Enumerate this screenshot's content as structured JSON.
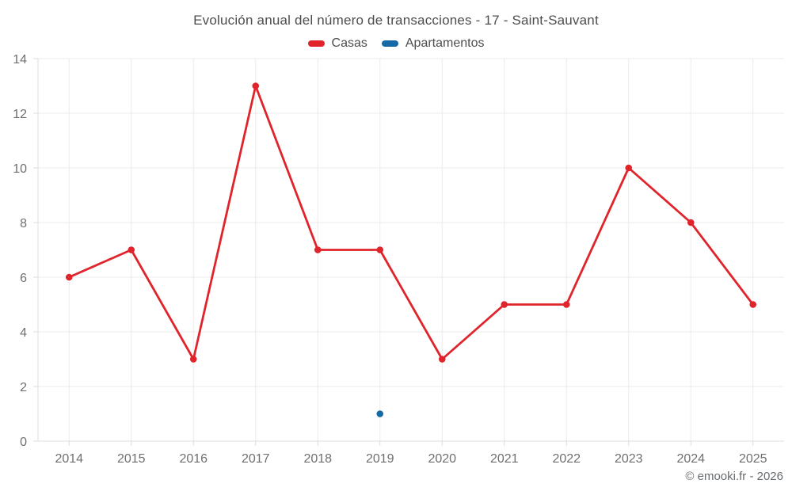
{
  "footer_credit": "© emooki.fr - 2026",
  "chart_data": {
    "type": "line",
    "title": "Evolución anual del número de transacciones - 17 - Saint-Sauvant",
    "categories": [
      "2014",
      "2015",
      "2016",
      "2017",
      "2018",
      "2019",
      "2020",
      "2021",
      "2022",
      "2023",
      "2024",
      "2025"
    ],
    "series": [
      {
        "name": "Casas",
        "color": "#e0242b",
        "values": [
          6,
          7,
          3,
          13,
          7,
          7,
          3,
          5,
          5,
          10,
          8,
          5
        ]
      },
      {
        "name": "Apartamentos",
        "color": "#1569a5",
        "values": [
          null,
          null,
          null,
          null,
          null,
          1,
          null,
          null,
          null,
          null,
          null,
          null
        ]
      }
    ],
    "xlabel": "",
    "ylabel": "",
    "ylim": [
      0,
      14
    ],
    "ytick_step": 2,
    "yticks": [
      0,
      2,
      4,
      6,
      8,
      10,
      12,
      14
    ],
    "grid": true,
    "legend_position": "top",
    "grid_color": "#ebebeb",
    "axis_color": "#dcdcdc",
    "tick_label_color": "#6f6f6f"
  }
}
